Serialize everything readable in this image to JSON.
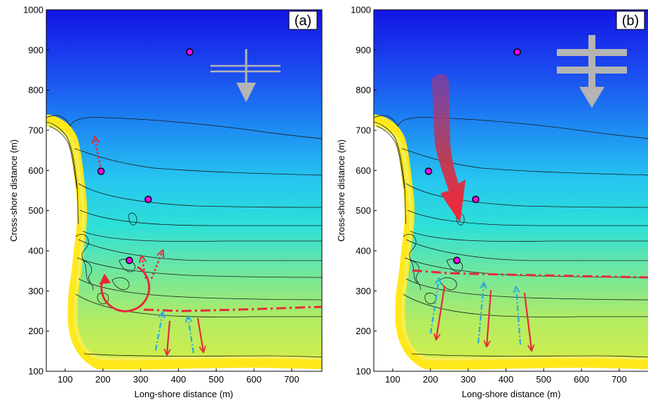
{
  "panels": [
    {
      "id": "a",
      "label": "(a)"
    },
    {
      "id": "b",
      "label": "(b)"
    }
  ],
  "axes": {
    "xlabel": "Long-shore distance (m)",
    "ylabel": "Cross-shore distance (m)",
    "xlim": [
      50,
      780
    ],
    "ylim": [
      100,
      1000
    ],
    "xticks": [
      100,
      200,
      300,
      400,
      500,
      600,
      700
    ],
    "yticks": [
      100,
      200,
      300,
      400,
      500,
      600,
      700,
      800,
      900,
      1000
    ]
  },
  "colors": {
    "deep": "#1420e6",
    "mid": "#2fd2f0",
    "shallow": "#b8ea5a",
    "beach": "#ffe81a",
    "sensor": "#ff00ff",
    "current": "#e8283a",
    "inflow": "#2aa8e0",
    "wave_symbol": "#b4b4b4"
  },
  "sensors": {
    "a": [
      [
        430,
        895
      ],
      [
        195,
        598
      ],
      [
        320,
        528
      ],
      [
        270,
        376
      ]
    ],
    "b": [
      [
        430,
        895
      ],
      [
        195,
        598
      ],
      [
        320,
        528
      ],
      [
        270,
        376
      ]
    ]
  }
}
